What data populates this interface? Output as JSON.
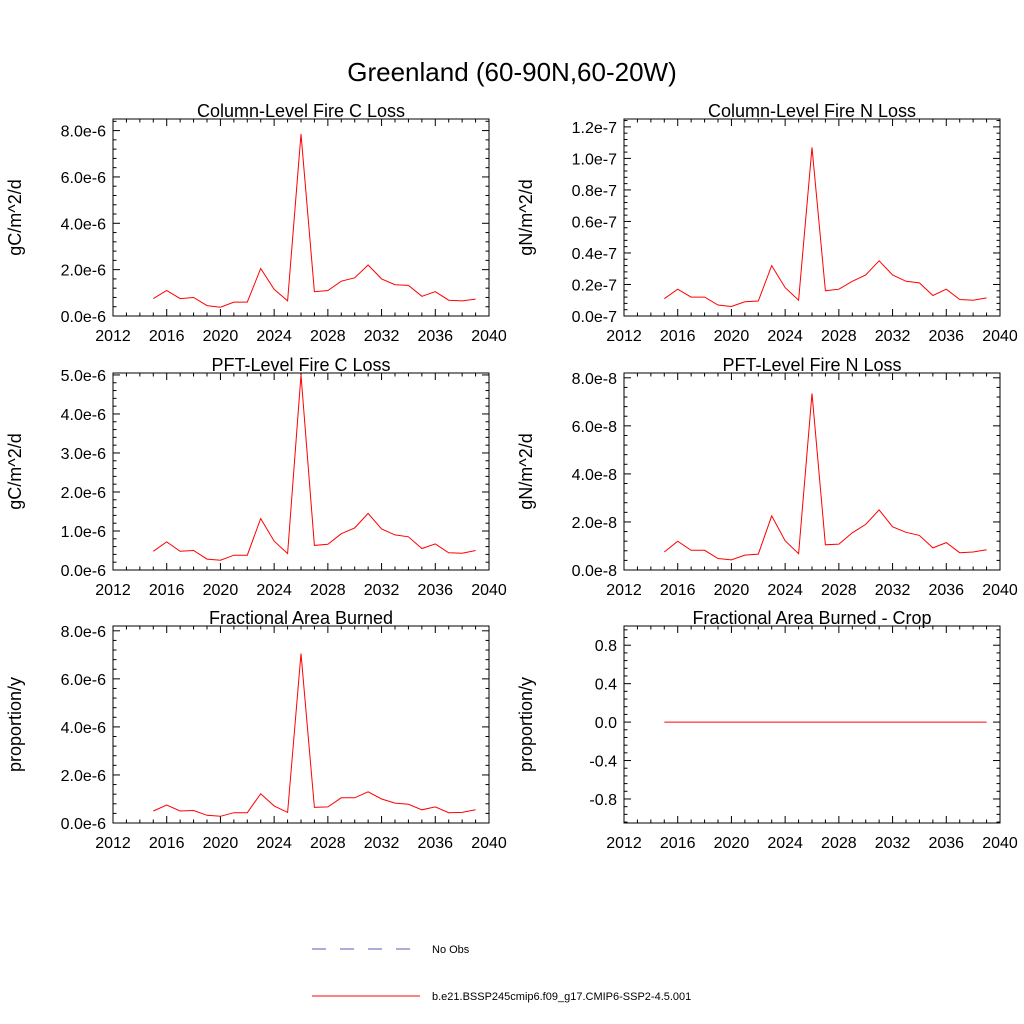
{
  "page": {
    "title": "Greenland (60-90N,60-20W)"
  },
  "chart_data": [
    {
      "type": "line",
      "title": "Column-Level Fire C Loss",
      "ylabel": "gC/m^2/d",
      "xlim": [
        2012,
        2040
      ],
      "ylim": [
        0,
        8.5e-06
      ],
      "xticks": [
        2012,
        2016,
        2020,
        2024,
        2028,
        2032,
        2036,
        2040
      ],
      "xtick_labels": [
        "2012",
        "2016",
        "2020",
        "2024",
        "2028",
        "2032",
        "2036",
        "2040"
      ],
      "yticks": [
        0,
        2e-06,
        4e-06,
        6e-06,
        8e-06
      ],
      "ytick_labels": [
        "0.0e-6",
        "2.0e-6",
        "4.0e-6",
        "6.0e-6",
        "8.0e-6"
      ],
      "series": [
        {
          "color": "#ff0000",
          "x": [
            2015,
            2016,
            2017,
            2018,
            2019,
            2020,
            2021,
            2022,
            2023,
            2024,
            2025,
            2026,
            2027,
            2028,
            2029,
            2030,
            2031,
            2032,
            2033,
            2034,
            2035,
            2036,
            2037,
            2038,
            2039
          ],
          "y": [
            7.5e-07,
            1.1e-06,
            7.5e-07,
            8e-07,
            4.5e-07,
            3.8e-07,
            6e-07,
            6e-07,
            2.05e-06,
            1.15e-06,
            6.5e-07,
            7.85e-06,
            1.05e-06,
            1.1e-06,
            1.5e-06,
            1.65e-06,
            2.2e-06,
            1.6e-06,
            1.35e-06,
            1.32e-06,
            8.5e-07,
            1.05e-06,
            6.8e-07,
            6.5e-07,
            7.3e-07
          ]
        }
      ]
    },
    {
      "type": "line",
      "title": "Column-Level Fire N Loss",
      "ylabel": "gN/m^2/d",
      "xlim": [
        2012,
        2040
      ],
      "ylim": [
        0,
        1.25e-07
      ],
      "xticks": [
        2012,
        2016,
        2020,
        2024,
        2028,
        2032,
        2036,
        2040
      ],
      "xtick_labels": [
        "2012",
        "2016",
        "2020",
        "2024",
        "2028",
        "2032",
        "2036",
        "2040"
      ],
      "yticks": [
        0,
        2e-08,
        4e-08,
        6e-08,
        8e-08,
        1e-07,
        1.2e-07
      ],
      "ytick_labels": [
        "0.0e-7",
        "0.2e-7",
        "0.4e-7",
        "0.6e-7",
        "0.8e-7",
        "1.0e-7",
        "1.2e-7"
      ],
      "series": [
        {
          "color": "#ff0000",
          "x": [
            2015,
            2016,
            2017,
            2018,
            2019,
            2020,
            2021,
            2022,
            2023,
            2024,
            2025,
            2026,
            2027,
            2028,
            2029,
            2030,
            2031,
            2032,
            2033,
            2034,
            2035,
            2036,
            2037,
            2038,
            2039
          ],
          "y": [
            1.1e-08,
            1.7e-08,
            1.2e-08,
            1.2e-08,
            7e-09,
            6e-09,
            9e-09,
            9.5e-09,
            3.2e-08,
            1.8e-08,
            1e-08,
            1.07e-07,
            1.6e-08,
            1.7e-08,
            2.2e-08,
            2.6e-08,
            3.5e-08,
            2.6e-08,
            2.2e-08,
            2.1e-08,
            1.3e-08,
            1.7e-08,
            1.05e-08,
            1e-08,
            1.15e-08
          ]
        }
      ]
    },
    {
      "type": "line",
      "title": "PFT-Level Fire C Loss",
      "ylabel": "gC/m^2/d",
      "xlim": [
        2012,
        2040
      ],
      "ylim": [
        0,
        5.05e-06
      ],
      "xticks": [
        2012,
        2016,
        2020,
        2024,
        2028,
        2032,
        2036,
        2040
      ],
      "xtick_labels": [
        "2012",
        "2016",
        "2020",
        "2024",
        "2028",
        "2032",
        "2036",
        "2040"
      ],
      "yticks": [
        0,
        1e-06,
        2e-06,
        3e-06,
        4e-06,
        5e-06
      ],
      "ytick_labels": [
        "0.0e-6",
        "1.0e-6",
        "2.0e-6",
        "3.0e-6",
        "4.0e-6",
        "5.0e-6"
      ],
      "series": [
        {
          "color": "#ff0000",
          "x": [
            2015,
            2016,
            2017,
            2018,
            2019,
            2020,
            2021,
            2022,
            2023,
            2024,
            2025,
            2026,
            2027,
            2028,
            2029,
            2030,
            2031,
            2032,
            2033,
            2034,
            2035,
            2036,
            2037,
            2038,
            2039
          ],
          "y": [
            4.8e-07,
            7.2e-07,
            4.8e-07,
            5e-07,
            2.8e-07,
            2.5e-07,
            3.8e-07,
            3.8e-07,
            1.32e-06,
            7.4e-07,
            4.2e-07,
            5e-06,
            6.3e-07,
            6.6e-07,
            9.3e-07,
            1.08e-06,
            1.45e-06,
            1.05e-06,
            9e-07,
            8.5e-07,
            5.5e-07,
            6.7e-07,
            4.4e-07,
            4.3e-07,
            5e-07
          ]
        }
      ]
    },
    {
      "type": "line",
      "title": "PFT-Level Fire N Loss",
      "ylabel": "gN/m^2/d",
      "xlim": [
        2012,
        2040
      ],
      "ylim": [
        0,
        8.2e-08
      ],
      "xticks": [
        2012,
        2016,
        2020,
        2024,
        2028,
        2032,
        2036,
        2040
      ],
      "xtick_labels": [
        "2012",
        "2016",
        "2020",
        "2024",
        "2028",
        "2032",
        "2036",
        "2040"
      ],
      "yticks": [
        0,
        2e-08,
        4e-08,
        6e-08,
        8e-08
      ],
      "ytick_labels": [
        "0.0e-8",
        "2.0e-8",
        "4.0e-8",
        "6.0e-8",
        "8.0e-8"
      ],
      "series": [
        {
          "color": "#ff0000",
          "x": [
            2015,
            2016,
            2017,
            2018,
            2019,
            2020,
            2021,
            2022,
            2023,
            2024,
            2025,
            2026,
            2027,
            2028,
            2029,
            2030,
            2031,
            2032,
            2033,
            2034,
            2035,
            2036,
            2037,
            2038,
            2039
          ],
          "y": [
            7.5e-09,
            1.2e-08,
            8.2e-09,
            8.2e-09,
            4.8e-09,
            4.2e-09,
            6.2e-09,
            6.6e-09,
            2.25e-08,
            1.22e-08,
            6.8e-09,
            7.35e-08,
            1.05e-08,
            1.08e-08,
            1.55e-08,
            1.9e-08,
            2.5e-08,
            1.8e-08,
            1.57e-08,
            1.44e-08,
            9.2e-09,
            1.14e-08,
            7.2e-09,
            7.5e-09,
            8.4e-09
          ]
        }
      ]
    },
    {
      "type": "line",
      "title": "Fractional Area Burned",
      "ylabel": "proportion/y",
      "xlim": [
        2012,
        2040
      ],
      "ylim": [
        0,
        8.2e-06
      ],
      "xticks": [
        2012,
        2016,
        2020,
        2024,
        2028,
        2032,
        2036,
        2040
      ],
      "xtick_labels": [
        "2012",
        "2016",
        "2020",
        "2024",
        "2028",
        "2032",
        "2036",
        "2040"
      ],
      "yticks": [
        0,
        2e-06,
        4e-06,
        6e-06,
        8e-06
      ],
      "ytick_labels": [
        "0.0e-6",
        "2.0e-6",
        "4.0e-6",
        "6.0e-6",
        "8.0e-6"
      ],
      "series": [
        {
          "color": "#ff0000",
          "x": [
            2015,
            2016,
            2017,
            2018,
            2019,
            2020,
            2021,
            2022,
            2023,
            2024,
            2025,
            2026,
            2027,
            2028,
            2029,
            2030,
            2031,
            2032,
            2033,
            2034,
            2035,
            2036,
            2037,
            2038,
            2039
          ],
          "y": [
            5e-07,
            7.5e-07,
            5e-07,
            5.2e-07,
            3.2e-07,
            2.8e-07,
            4.3e-07,
            4.3e-07,
            1.22e-06,
            7.1e-07,
            4.4e-07,
            7.05e-06,
            6.5e-07,
            6.7e-07,
            1.05e-06,
            1.05e-06,
            1.3e-06,
            1e-06,
            8.3e-07,
            7.8e-07,
            5.5e-07,
            6.7e-07,
            4.3e-07,
            4.4e-07,
            5.5e-07
          ]
        }
      ]
    },
    {
      "type": "line",
      "title": "Fractional Area Burned - Crop",
      "ylabel": "proportion/y",
      "xlim": [
        2012,
        2040
      ],
      "ylim": [
        -1.05,
        1.0
      ],
      "xticks": [
        2012,
        2016,
        2020,
        2024,
        2028,
        2032,
        2036,
        2040
      ],
      "xtick_labels": [
        "2012",
        "2016",
        "2020",
        "2024",
        "2028",
        "2032",
        "2036",
        "2040"
      ],
      "yticks": [
        -0.8,
        -0.4,
        0,
        0.4,
        0.8
      ],
      "ytick_labels": [
        "-0.8",
        "-0.4",
        "0.0",
        "0.4",
        "0.8"
      ],
      "series": [
        {
          "color": "#ff0000",
          "x": [
            2015,
            2016,
            2017,
            2018,
            2019,
            2020,
            2021,
            2022,
            2023,
            2024,
            2025,
            2026,
            2027,
            2028,
            2029,
            2030,
            2031,
            2032,
            2033,
            2034,
            2035,
            2036,
            2037,
            2038,
            2039
          ],
          "y": [
            0,
            0,
            0,
            0,
            0,
            0,
            0,
            0,
            0,
            0,
            0,
            0,
            0,
            0,
            0,
            0,
            0,
            0,
            0,
            0,
            0,
            0,
            0,
            0,
            0
          ]
        }
      ]
    }
  ],
  "legend": {
    "items": [
      {
        "label": "No Obs",
        "color": "#5a5ab4",
        "style": "dashed"
      },
      {
        "label": "b.e21.BSSP245cmip6.f09_g17.CMIP6-SSP2-4.5.001",
        "color": "#ff0000",
        "style": "solid"
      }
    ]
  }
}
